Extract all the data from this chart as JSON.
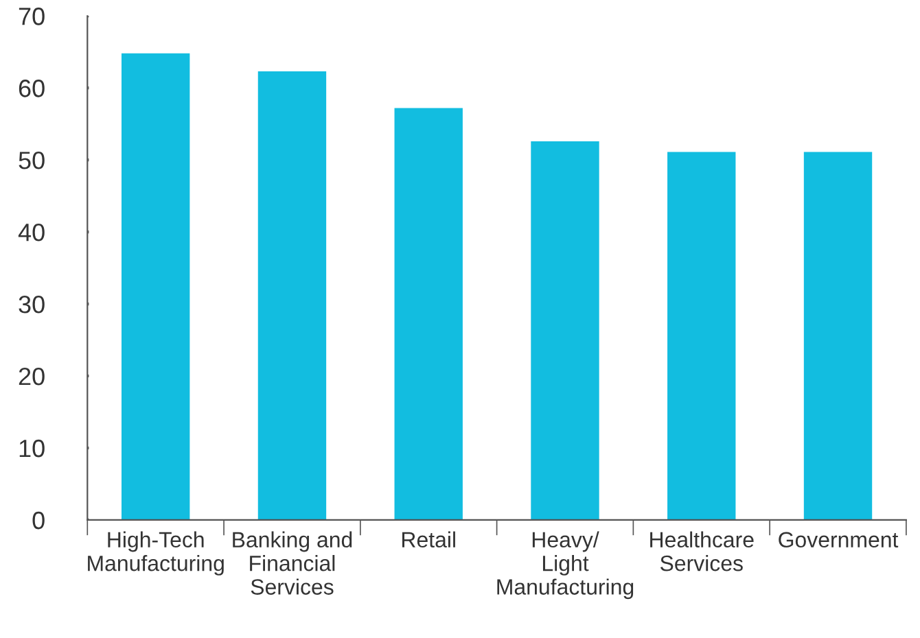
{
  "chart_data": {
    "type": "bar",
    "categories": [
      "High-Tech\nManufacturing",
      "Banking and\nFinancial\nServices",
      "Retail",
      "Heavy/\nLight\nManufacturing",
      "Healthcare\nServices",
      "Government"
    ],
    "values": [
      64.8,
      62.3,
      57.2,
      52.6,
      51.1,
      51.1
    ],
    "color": "#12bde0",
    "ylim": [
      0,
      70
    ],
    "yticks": [
      0,
      10,
      20,
      30,
      40,
      50,
      60,
      70
    ],
    "grid": false,
    "legend": false
  }
}
